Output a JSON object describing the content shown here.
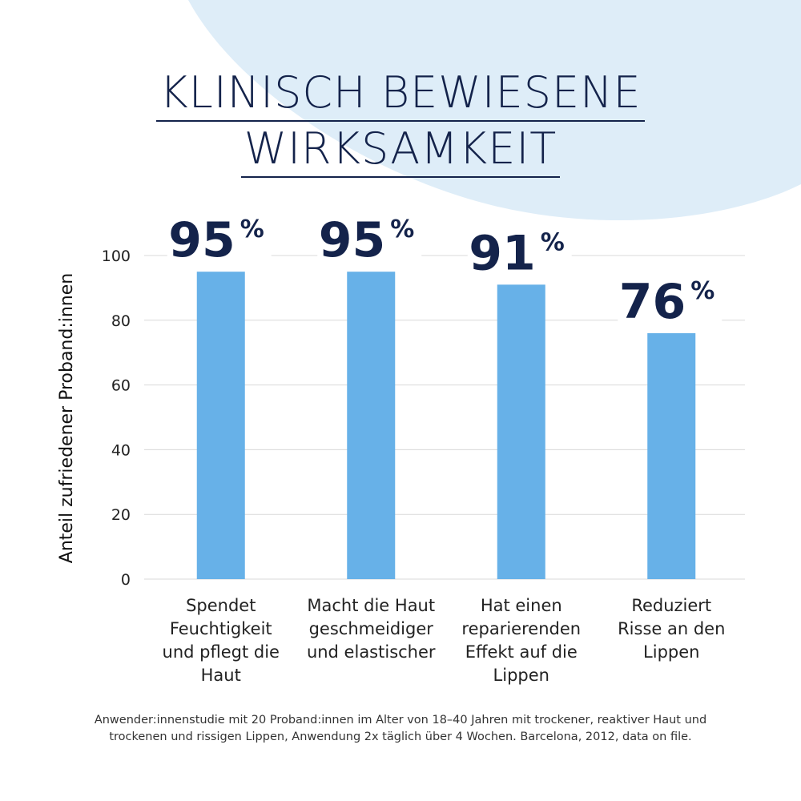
{
  "title": {
    "line1": "KLINISCH BEWIESENE",
    "line2": "WIRKSAMKEIT"
  },
  "colors": {
    "bar": "#67b1e8",
    "title": "#14234b",
    "background_shape": "#deedf8",
    "grid": "#d9d9d9"
  },
  "chart_data": {
    "type": "bar",
    "categories": [
      "Spendet Feuchtigkeit und pflegt die Haut",
      "Macht die Haut geschmeidiger und elastischer",
      "Hat einen reparierenden Effekt auf die Lippen",
      "Reduziert Risse an den Lippen"
    ],
    "category_lines": [
      [
        "Spendet",
        "Feuchtigkeit",
        "und pflegt die",
        "Haut"
      ],
      [
        "Macht die Haut",
        "geschmeidiger",
        "und elastischer"
      ],
      [
        "Hat einen",
        "reparierenden",
        "Effekt auf die",
        "Lippen"
      ],
      [
        "Reduziert",
        "Risse an den",
        "Lippen"
      ]
    ],
    "values": [
      95,
      95,
      91,
      76
    ],
    "data_labels": [
      "95",
      "95",
      "91",
      "76"
    ],
    "data_label_unit": "%",
    "ylabel": "Anteil zufriedener Proband:innen",
    "xlabel": "",
    "ylim": [
      0,
      100
    ],
    "yticks": [
      0,
      20,
      40,
      60,
      80,
      100
    ],
    "grid": true,
    "legend": "none"
  },
  "footnote": {
    "line1": "Anwender:innenstudie mit 20 Proband:innen im Alter von 18–40 Jahren mit trockener, reaktiver Haut und",
    "line2": "trockenen und rissigen Lippen, Anwendung 2x täglich über 4 Wochen. Barcelona, 2012, data on file."
  }
}
